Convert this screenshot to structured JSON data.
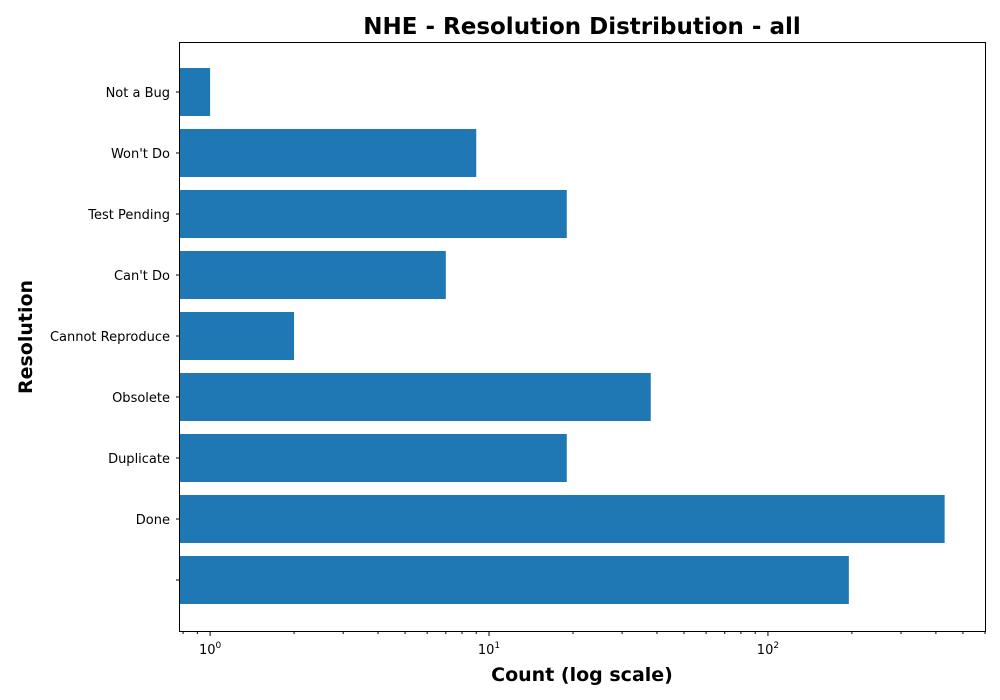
{
  "chart_data": {
    "type": "bar",
    "orientation": "horizontal",
    "title": "NHE - Resolution Distribution - all",
    "xlabel": "Count (log scale)",
    "ylabel": "Resolution",
    "x_scale": "log",
    "xlim": [
      0.78,
      600
    ],
    "x_ticks": [
      {
        "value": 1,
        "base": "10",
        "exp": "0"
      },
      {
        "value": 10,
        "base": "10",
        "exp": "1"
      },
      {
        "value": 100,
        "base": "10",
        "exp": "2"
      }
    ],
    "categories": [
      "",
      "Done",
      "Duplicate",
      "Obsolete",
      "Cannot Reproduce",
      "Can't Do",
      "Test Pending",
      "Won't Do",
      "Not a Bug"
    ],
    "values": [
      195,
      430,
      19,
      38,
      2,
      7,
      19,
      9,
      1
    ],
    "bar_color": "#1f77b4",
    "grid": false,
    "legend": "none"
  }
}
